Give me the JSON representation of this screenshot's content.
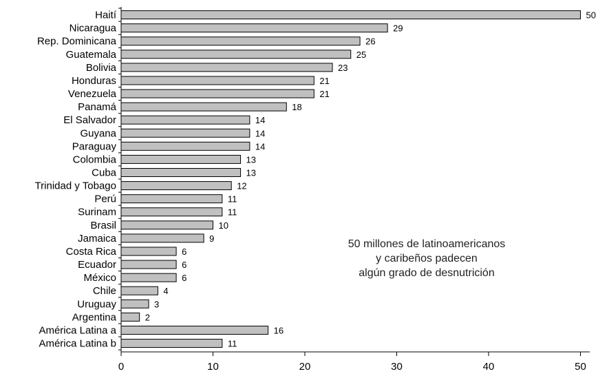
{
  "chart_data": {
    "type": "bar",
    "orientation": "horizontal",
    "categories": [
      "Haití",
      "Nicaragua",
      "Rep. Dominicana",
      "Guatemala",
      "Bolivia",
      "Honduras",
      "Venezuela",
      "Panamá",
      "El Salvador",
      "Guyana",
      "Paraguay",
      "Colombia",
      "Cuba",
      "Trinidad y Tobago",
      "Perú",
      "Surinam",
      "Brasil",
      "Jamaica",
      "Costa Rica",
      "Ecuador",
      "México",
      "Chile",
      "Uruguay",
      "Argentina",
      "América Latina a",
      "América Latina b"
    ],
    "values": [
      50,
      29,
      26,
      25,
      23,
      21,
      21,
      18,
      14,
      14,
      14,
      13,
      13,
      12,
      11,
      11,
      10,
      9,
      6,
      6,
      6,
      4,
      3,
      2,
      16,
      11
    ],
    "value_labels": [
      "50",
      "29",
      "26",
      "25",
      "23",
      "21",
      "21",
      "18",
      "14",
      "14",
      "14",
      "13",
      "13",
      "12",
      "11",
      "11",
      "10",
      "9",
      "6",
      "6",
      "6",
      "4",
      "3",
      "2",
      "16",
      "11"
    ],
    "xticks": [
      "0",
      "10",
      "20",
      "30",
      "40",
      "50"
    ],
    "xlim": [
      0,
      51
    ],
    "title": "",
    "xlabel": "",
    "ylabel": "",
    "grid": false,
    "bar_color": "#c0c0c0",
    "bar_edge_color": "#000000",
    "annotation": [
      "50 millones de latinoamericanos",
      "y caribeños padecen",
      "algún grado de desnutrición"
    ]
  }
}
